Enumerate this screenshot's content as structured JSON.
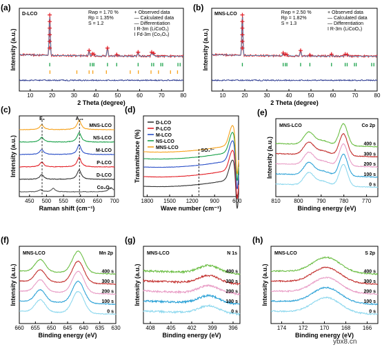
{
  "watermark": "ybx8.cn",
  "chart_data": [
    {
      "type": "line",
      "panel": "(a)",
      "sample_label": "D-LCO",
      "xlabel": "2 Theta (degree)",
      "ylabel": "Intensity (a.u.)",
      "xlim": [
        5,
        80
      ],
      "xticks": [
        10,
        20,
        30,
        40,
        50,
        60,
        70,
        80
      ],
      "stats": [
        "Rwp = 1.70 %",
        "Rp = 1.35%",
        "S = 1.2"
      ],
      "legend": [
        {
          "label": "+ Observed data",
          "color": "#e32027"
        },
        {
          "label": "— Calculated data",
          "color": "#2a9fd6"
        },
        {
          "label": "— Differentiation",
          "color": "#2b3990"
        },
        {
          "label": "I R-3m (LiCoO₂)",
          "color": "#1aa24a"
        },
        {
          "label": "I Fd-3m (Co₃O₄)",
          "color": "#f7a21b"
        }
      ],
      "peaks": [
        {
          "x": 18.9,
          "h": 1.0
        },
        {
          "x": 36.9,
          "h": 0.14
        },
        {
          "x": 38.4,
          "h": 0.06
        },
        {
          "x": 39.1,
          "h": 0.05
        },
        {
          "x": 45.3,
          "h": 0.2
        },
        {
          "x": 49.5,
          "h": 0.04
        },
        {
          "x": 59.3,
          "h": 0.1
        },
        {
          "x": 65.5,
          "h": 0.1
        },
        {
          "x": 66.4,
          "h": 0.07
        }
      ],
      "ticks_phase1": [
        18.9,
        37.4,
        38.4,
        39.1,
        45.3,
        49.5,
        59.3,
        65.5,
        66.4,
        69.7,
        70.5,
        77.5,
        78.5
      ],
      "ticks_phase2": [
        19.0,
        31.3,
        36.9,
        38.6,
        44.8,
        55.7,
        59.4,
        65.2,
        68.6,
        74.1,
        77.3
      ]
    },
    {
      "type": "line",
      "panel": "(b)",
      "sample_label": "MNS-LCO",
      "xlabel": "2 Theta (degree)",
      "ylabel": "Intensity (a.u.)",
      "xlim": [
        5,
        80
      ],
      "xticks": [
        10,
        20,
        30,
        40,
        50,
        60,
        70,
        80
      ],
      "stats": [
        "Rwp = 2.50 %",
        "Rp = 1.82%",
        "S = 1.3"
      ],
      "legend": [
        {
          "label": "+ Observed data",
          "color": "#e32027"
        },
        {
          "label": "— Calculated data",
          "color": "#2a9fd6"
        },
        {
          "label": "— Differentiation",
          "color": "#2b3990"
        },
        {
          "label": "I R-3m (LiCoO₂)",
          "color": "#1aa24a"
        }
      ],
      "peaks": [
        {
          "x": 18.9,
          "h": 1.0
        },
        {
          "x": 37.4,
          "h": 0.08
        },
        {
          "x": 38.4,
          "h": 0.05
        },
        {
          "x": 39.1,
          "h": 0.04
        },
        {
          "x": 45.3,
          "h": 0.14
        },
        {
          "x": 49.5,
          "h": 0.03
        },
        {
          "x": 59.3,
          "h": 0.05
        },
        {
          "x": 65.5,
          "h": 0.05
        },
        {
          "x": 66.4,
          "h": 0.04
        }
      ],
      "ticks_phase1": [
        18.9,
        37.4,
        38.4,
        39.1,
        45.3,
        49.5,
        59.3,
        65.5,
        66.4,
        69.7,
        70.5,
        77.5,
        78.5
      ]
    },
    {
      "type": "line",
      "panel": "(c)",
      "xlabel": "Raman shift (cm⁻¹)",
      "ylabel": "Intensity (a.u.)",
      "xlim": [
        420,
        700
      ],
      "xticks": [
        450,
        500,
        550,
        600,
        650,
        700
      ],
      "peak_labels": [
        {
          "text": "E₉",
          "x": 487
        },
        {
          "text": "A₁₉",
          "x": 597
        }
      ],
      "series": [
        {
          "name": "Co₃O₄",
          "color": "#555555",
          "offset": 0
        },
        {
          "name": "D-LCO",
          "color": "#333333",
          "offset": 1
        },
        {
          "name": "P-LCO",
          "color": "#e32027",
          "offset": 2
        },
        {
          "name": "M-LCO",
          "color": "#2b50c8",
          "offset": 3
        },
        {
          "name": "NS-LCO",
          "color": "#1aa24a",
          "offset": 4
        },
        {
          "name": "MNS-LCO",
          "color": "#f7a21b",
          "offset": 5
        }
      ]
    },
    {
      "type": "line",
      "panel": "(d)",
      "xlabel": "Wave number (cm⁻¹)",
      "ylabel": "Transmittance (%)",
      "xlim": [
        1850,
        580
      ],
      "xticks": [
        1800,
        1500,
        1200,
        900,
        600
      ],
      "annotation": "SO₄²⁻",
      "annotation_x": 1110,
      "series": [
        {
          "name": "D-LCO",
          "color": "#333333"
        },
        {
          "name": "P-LCO",
          "color": "#e32027"
        },
        {
          "name": "M-LCO",
          "color": "#2b50c8"
        },
        {
          "name": "NS-LCO",
          "color": "#1aa24a"
        },
        {
          "name": "MNS-LCO",
          "color": "#f7a21b"
        }
      ]
    },
    {
      "type": "line",
      "panel": "(e)",
      "sample_label": "MNS-LCO",
      "element_label": "Co 2p",
      "xlabel": "Binding energy (eV)",
      "ylabel": "Intensity (a.u.)",
      "xlim": [
        810,
        765
      ],
      "xticks": [
        810,
        800,
        790,
        780,
        770
      ],
      "peaks": [
        {
          "x": 795.5,
          "w": 2.2,
          "h": 0.55
        },
        {
          "x": 789.5,
          "w": 3,
          "h": 0.2
        },
        {
          "x": 780.2,
          "w": 1.8,
          "h": 1.0
        }
      ],
      "series": [
        {
          "name": "0 s"
        },
        {
          "name": "100 s"
        },
        {
          "name": "200 s"
        },
        {
          "name": "300 s"
        },
        {
          "name": "400 s"
        }
      ]
    },
    {
      "type": "line",
      "panel": "(f)",
      "sample_label": "MNS-LCO",
      "element_label": "Mn 2p",
      "xlabel": "Binding energy (eV)",
      "ylabel": "Intensity (a.u.)",
      "xlim": [
        660,
        630
      ],
      "xticks": [
        660,
        655,
        650,
        645,
        640,
        635,
        630
      ],
      "peaks": [
        {
          "x": 653.5,
          "w": 1.6,
          "h": 0.55
        },
        {
          "x": 641.7,
          "w": 1.8,
          "h": 1.0
        }
      ],
      "series": [
        {
          "name": "0 s"
        },
        {
          "name": "100 s"
        },
        {
          "name": "200 s"
        },
        {
          "name": "300 s"
        },
        {
          "name": "400 s"
        }
      ]
    },
    {
      "type": "line",
      "panel": "(g)",
      "sample_label": "MNS-LCO",
      "element_label": "N 1s",
      "xlabel": "Binding energy (eV)",
      "ylabel": "Intensity (a.u.)",
      "xlim": [
        409,
        395
      ],
      "xticks": [
        408,
        405,
        402,
        399,
        396
      ],
      "peaks": [
        {
          "x": 399.5,
          "w": 1.5,
          "h": 0.35
        }
      ],
      "series": [
        {
          "name": "0 s"
        },
        {
          "name": "100 s"
        },
        {
          "name": "200 s"
        },
        {
          "name": "300 s"
        },
        {
          "name": "400 s"
        }
      ]
    },
    {
      "type": "line",
      "panel": "(h)",
      "sample_label": "MNS-LCO",
      "element_label": "S 2p",
      "xlabel": "Binding energy (eV)",
      "ylabel": "Intensity (a.u.)",
      "xlim": [
        175,
        165
      ],
      "xticks": [
        174,
        172,
        170,
        168,
        166
      ],
      "peaks": [
        {
          "x": 169.8,
          "w": 1.3,
          "h": 0.7
        }
      ],
      "series": [
        {
          "name": "0 s"
        },
        {
          "name": "100 s"
        },
        {
          "name": "200 s"
        },
        {
          "name": "300 s"
        },
        {
          "name": "400 s"
        }
      ]
    }
  ],
  "xps_colors": [
    "#8ed8ee",
    "#2fa3d7",
    "#e89cc5",
    "#c3302e",
    "#6cbe45"
  ]
}
